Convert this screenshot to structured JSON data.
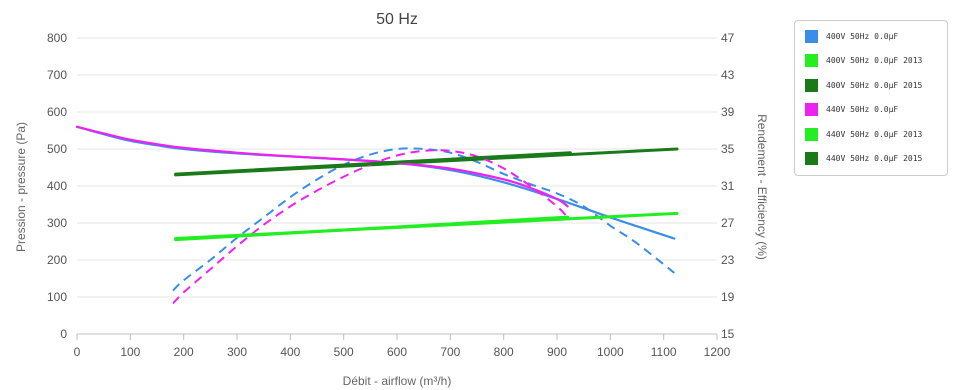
{
  "chart_data": {
    "type": "line",
    "title": "50 Hz",
    "xlabel": "Débit - airflow (m³/h)",
    "ylabel_left": "Pression - pressure (Pa)",
    "ylabel_right": "Rendement - Efficiency (%)",
    "xlim": [
      0,
      1200
    ],
    "xticks": [
      0,
      100,
      200,
      300,
      400,
      500,
      600,
      700,
      800,
      900,
      1000,
      1100,
      1200
    ],
    "ylim_left": [
      0,
      800
    ],
    "yticks_left": [
      0,
      100,
      200,
      300,
      400,
      500,
      600,
      700,
      800
    ],
    "ylim_right": [
      15,
      47
    ],
    "yticks_right": [
      15,
      19,
      23,
      27,
      31,
      35,
      39,
      43,
      47
    ],
    "grid": true,
    "legend_position": "right",
    "series": [
      {
        "name": "400V 50Hz 0.0µF",
        "color": "#3a8ee6",
        "pressure": {
          "x": [
            0,
            50,
            100,
            150,
            200,
            300,
            400,
            500,
            600,
            700,
            800,
            900,
            1000,
            1120
          ],
          "y": [
            560,
            540,
            522,
            510,
            500,
            488,
            480,
            472,
            462,
            443,
            410,
            365,
            315,
            258
          ]
        },
        "efficiency": {
          "x": [
            180,
            200,
            250,
            300,
            350,
            400,
            450,
            500,
            550,
            600,
            650,
            700,
            750,
            800,
            850,
            900,
            950,
            1000,
            1050,
            1120
          ],
          "y": [
            19.7,
            20.8,
            23.0,
            25.4,
            27.6,
            29.8,
            31.7,
            33.3,
            34.4,
            35.0,
            35.0,
            34.6,
            33.6,
            32.3,
            31.2,
            30.2,
            28.8,
            26.7,
            24.8,
            21.6
          ]
        }
      },
      {
        "name": "400V 50Hz 0.0µF 2013",
        "color": "#22ee22",
        "pressure": {
          "x": [
            185,
            920
          ],
          "y": [
            255,
            316
          ]
        }
      },
      {
        "name": "400V 50Hz 0.0µF 2015",
        "color": "#1a7a1a",
        "pressure": {
          "x": [
            185,
            1125
          ],
          "y": [
            430,
            500
          ]
        }
      },
      {
        "name": "440V 50Hz 0.0µF",
        "color": "#ee22ee",
        "pressure": {
          "x": [
            0,
            50,
            100,
            150,
            200,
            300,
            400,
            500,
            600,
            700,
            800,
            850,
            900,
            920
          ],
          "y": [
            560,
            542,
            525,
            513,
            503,
            490,
            480,
            472,
            462,
            447,
            418,
            395,
            365,
            345
          ]
        },
        "efficiency": {
          "x": [
            180,
            200,
            250,
            300,
            350,
            400,
            450,
            500,
            550,
            600,
            650,
            700,
            750,
            800,
            850,
            900,
            920
          ],
          "y": [
            18.3,
            19.5,
            22.0,
            24.5,
            26.8,
            28.8,
            30.5,
            32.0,
            33.3,
            34.3,
            34.8,
            34.8,
            34.2,
            32.9,
            31.0,
            28.8,
            27.6
          ]
        }
      },
      {
        "name": "440V 50Hz 0.0µF 2013",
        "color": "#22ee22",
        "pressure": {
          "x": [
            185,
            1125
          ],
          "y": [
            258,
            326
          ]
        }
      },
      {
        "name": "440V 50Hz 0.0µF 2015",
        "color": "#1a7a1a",
        "pressure": {
          "x": [
            185,
            925
          ],
          "y": [
            432,
            490
          ]
        }
      }
    ]
  }
}
